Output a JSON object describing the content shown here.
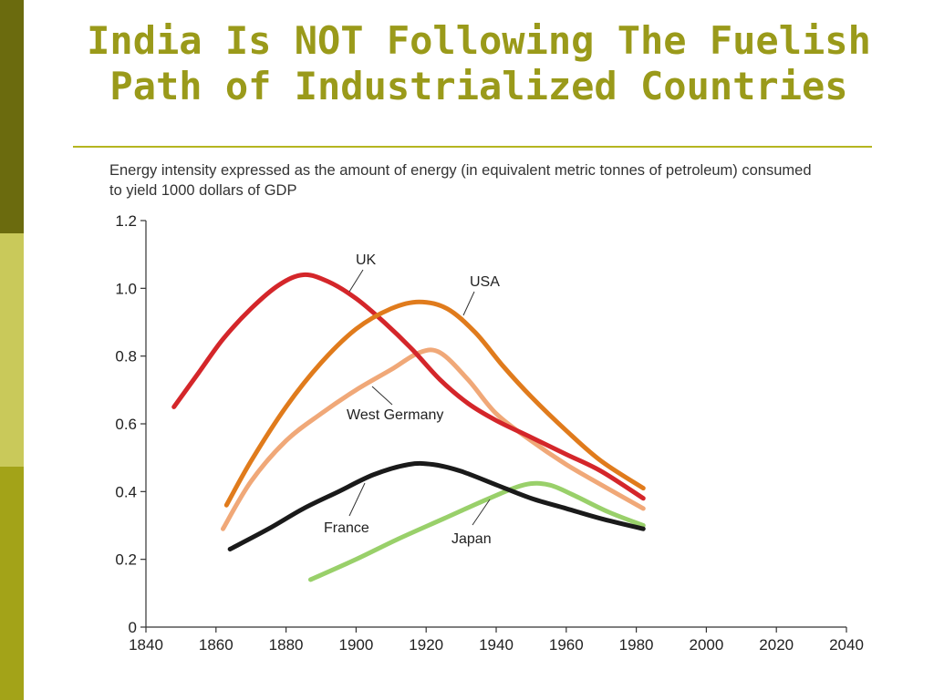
{
  "slide": {
    "title_line1": "India Is NOT Following The Fuelish",
    "title_line2": "Path of Industrialized Countries",
    "caption": "Energy intensity expressed as the amount of energy (in equivalent metric tonnes of petroleum) consumed to yield 1000 dollars of GDP"
  },
  "colors": {
    "title": "#9a9a1a",
    "strip_dark": "#6b6b0e",
    "strip_light": "#c9c95a",
    "strip_mid": "#a3a318"
  },
  "chart_data": {
    "type": "line",
    "title": "Energy intensity expressed as the amount of energy (in equivalent metric tonnes of petroleum) consumed to yield 1000 dollars of GDP",
    "xlabel": "",
    "ylabel": "",
    "xlim": [
      1840,
      2040
    ],
    "ylim": [
      0,
      1.2
    ],
    "xticks": [
      "1840",
      "1860",
      "1880",
      "1900",
      "1920",
      "1940",
      "1960",
      "1980",
      "2000",
      "2020",
      "2040"
    ],
    "yticks": [
      "0",
      "0.2",
      "0.4",
      "0.6",
      "0.8",
      "1.0",
      "1.2"
    ],
    "grid": false,
    "legend": "inline labels",
    "series": [
      {
        "name": "UK",
        "color": "#d4262a",
        "x": [
          1848,
          1855,
          1862,
          1870,
          1878,
          1885,
          1892,
          1900,
          1908,
          1916,
          1924,
          1932,
          1940,
          1950,
          1960,
          1970,
          1982
        ],
        "y": [
          0.65,
          0.75,
          0.85,
          0.94,
          1.01,
          1.04,
          1.02,
          0.97,
          0.9,
          0.82,
          0.73,
          0.66,
          0.61,
          0.56,
          0.51,
          0.46,
          0.38
        ]
      },
      {
        "name": "USA",
        "color": "#e07b1c",
        "x": [
          1863,
          1870,
          1880,
          1890,
          1900,
          1910,
          1918,
          1926,
          1934,
          1942,
          1950,
          1960,
          1970,
          1982
        ],
        "y": [
          0.36,
          0.49,
          0.65,
          0.78,
          0.88,
          0.94,
          0.96,
          0.94,
          0.87,
          0.77,
          0.68,
          0.58,
          0.49,
          0.41
        ]
      },
      {
        "name": "West Germany",
        "color": "#f0a878",
        "x": [
          1862,
          1870,
          1880,
          1890,
          1900,
          1910,
          1918,
          1924,
          1932,
          1940,
          1950,
          1960,
          1970,
          1982
        ],
        "y": [
          0.29,
          0.43,
          0.55,
          0.63,
          0.7,
          0.76,
          0.81,
          0.81,
          0.73,
          0.63,
          0.55,
          0.48,
          0.42,
          0.35
        ]
      },
      {
        "name": "France",
        "color": "#1a1a1a",
        "x": [
          1864,
          1875,
          1885,
          1895,
          1905,
          1915,
          1922,
          1930,
          1940,
          1950,
          1960,
          1970,
          1982
        ],
        "y": [
          0.23,
          0.29,
          0.35,
          0.4,
          0.45,
          0.48,
          0.48,
          0.46,
          0.42,
          0.38,
          0.35,
          0.32,
          0.29
        ]
      },
      {
        "name": "Japan",
        "color": "#99d06a",
        "x": [
          1887,
          1900,
          1912,
          1925,
          1938,
          1948,
          1955,
          1962,
          1972,
          1982
        ],
        "y": [
          0.14,
          0.2,
          0.26,
          0.32,
          0.38,
          0.42,
          0.42,
          0.39,
          0.34,
          0.3
        ]
      }
    ],
    "annotations": [
      {
        "text": "UK",
        "series": "UK"
      },
      {
        "text": "USA",
        "series": "USA"
      },
      {
        "text": "West Germany",
        "series": "West Germany"
      },
      {
        "text": "France",
        "series": "France"
      },
      {
        "text": "Japan",
        "series": "Japan"
      }
    ]
  }
}
